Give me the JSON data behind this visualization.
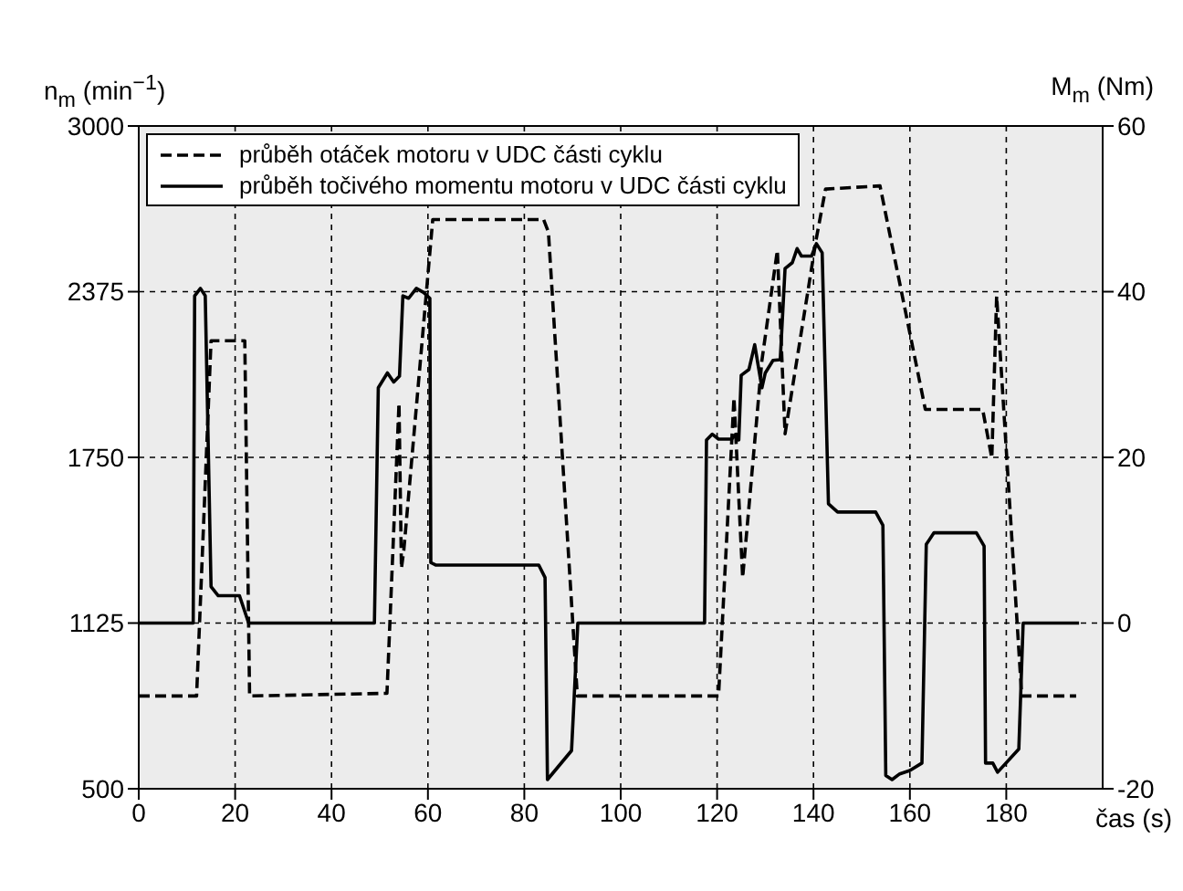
{
  "chart_data": {
    "type": "line",
    "xlabel": "čas (s)",
    "ylabel": "n$_{m}$ (min$^{−1}$)",
    "y2label": "M$_{m}$ (Nm)",
    "xlim": [
      0,
      200
    ],
    "xticks": [
      0,
      20,
      40,
      60,
      80,
      100,
      120,
      140,
      160,
      180
    ],
    "ylim": [
      500,
      3000
    ],
    "yticks": [
      500,
      1125,
      1750,
      2375,
      3000
    ],
    "y2lim": [
      -20,
      60
    ],
    "y2ticks": [
      -20,
      0,
      20,
      40,
      60
    ],
    "grid": true,
    "legend": "top left",
    "marker": "none",
    "series": [
      {
        "name": "průběh otáček motoru v UDC části cyklu",
        "color": "#000000",
        "line_style": "dashed",
        "x": [
          0,
          12,
          15,
          22,
          23,
          51,
          51.5,
          54,
          54.5,
          55,
          61,
          84,
          85,
          91,
          120.3,
          123.5,
          125.3,
          129.3,
          132.5,
          134.1,
          140.6,
          142.5,
          153.8,
          163.2,
          175.1,
          177,
          178,
          183.2,
          194.5
        ],
        "values": [
          850,
          850,
          2190,
          2190,
          850,
          860,
          860,
          1954,
          1331,
          1400,
          2647,
          2647,
          2600,
          850,
          850,
          1975,
          1296,
          2116,
          2531,
          1839,
          2577,
          2762,
          2774,
          1931,
          1931,
          1747,
          2358,
          850,
          850
        ]
      },
      {
        "name": "průběh točivého momentu motoru v UDC části cyklu",
        "color": "#000000",
        "line_style": "solid",
        "axis": "y2",
        "x": [
          0,
          11.3,
          11.6,
          12.8,
          13.8,
          15,
          16.5,
          20.9,
          22.8,
          48.9,
          49.7,
          51.6,
          52.9,
          54.1,
          54.8,
          56,
          57.6,
          59.1,
          60.4,
          60.6,
          61.6,
          83,
          84.3,
          84.8,
          89.8,
          91.1,
          117.4,
          117.8,
          119,
          120.3,
          123,
          124,
          124.5,
          125,
          126.6,
          127.8,
          129.3,
          130,
          131.6,
          133.1,
          134.1,
          135.6,
          136.6,
          137.5,
          139.6,
          140.6,
          141.8,
          143.1,
          145,
          152.9,
          154.4,
          155,
          156.3,
          157.9,
          160,
          162.5,
          163.4,
          165,
          173.8,
          175.4,
          175.7,
          177.2,
          178.2,
          182.6,
          183.5,
          195.1
        ],
        "values": [
          0,
          0,
          39.5,
          40.4,
          39.5,
          4.4,
          3.3,
          3.3,
          0,
          0,
          28.4,
          30.2,
          29.1,
          29.8,
          39.5,
          39.2,
          40.4,
          39.9,
          39.2,
          7.3,
          7,
          7,
          5.5,
          -18.9,
          -15.4,
          0,
          0,
          22.1,
          22.8,
          22.2,
          22.2,
          22.8,
          22.1,
          29.9,
          30.6,
          33.6,
          28.4,
          30.2,
          31.7,
          31.8,
          42.8,
          43.5,
          45.2,
          44.3,
          44.3,
          45.8,
          44.7,
          14.4,
          13.4,
          13.4,
          11.8,
          -18.4,
          -18.9,
          -18.2,
          -17.8,
          -16.9,
          9.5,
          10.9,
          10.9,
          9.3,
          -16.9,
          -16.9,
          -18,
          -15.2,
          0,
          0
        ]
      }
    ]
  }
}
